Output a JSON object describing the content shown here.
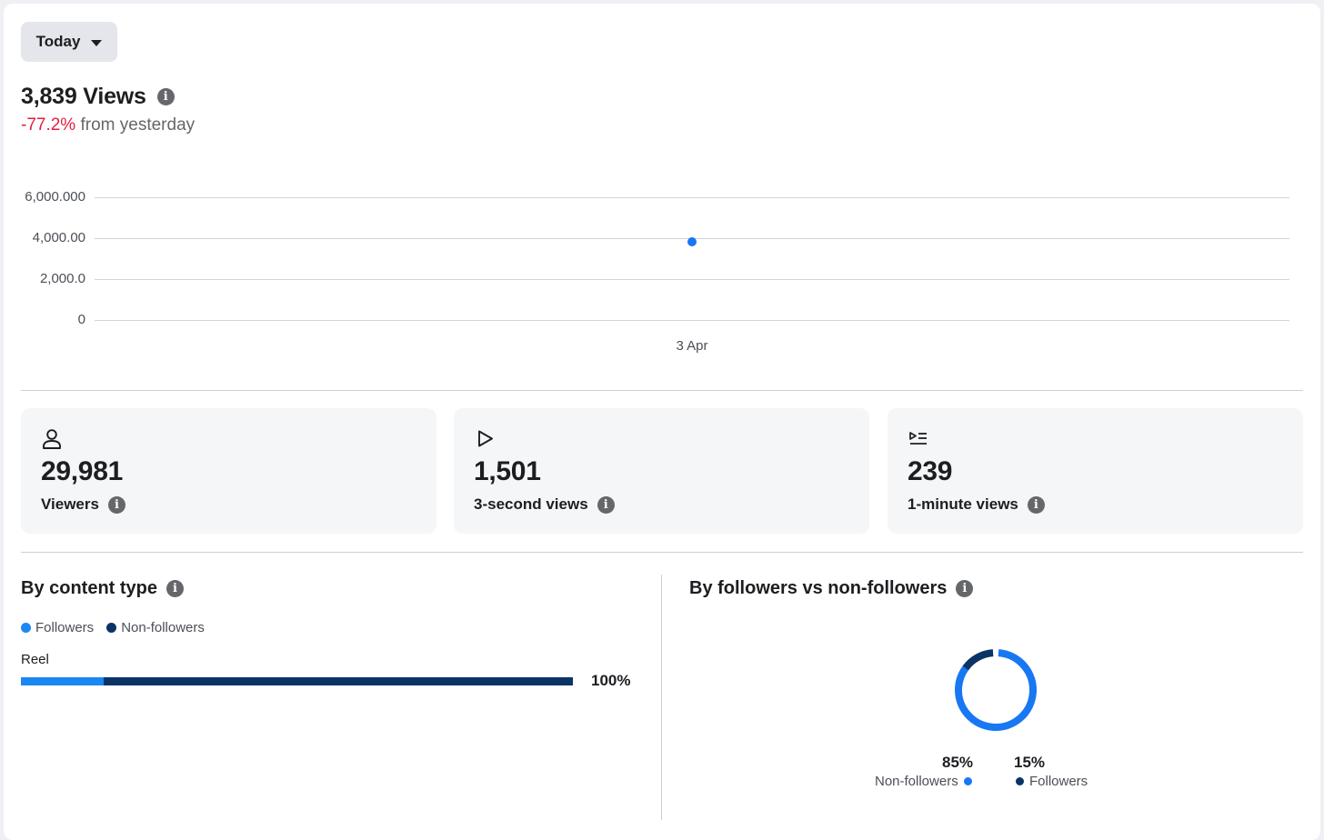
{
  "filter": {
    "label": "Today"
  },
  "summary": {
    "views": "3,839 Views",
    "change_pct": "-77.2%",
    "change_suffix": "from yesterday"
  },
  "chart_data": {
    "type": "scatter",
    "x": [
      "3 Apr"
    ],
    "y": [
      3839
    ],
    "ylim": [
      0,
      6000
    ],
    "yticks": [
      {
        "value": 6000,
        "label": "6,000.000"
      },
      {
        "value": 4000,
        "label": "4,000.00"
      },
      {
        "value": 2000,
        "label": "2,000.0"
      },
      {
        "value": 0,
        "label": "0"
      }
    ],
    "xticks": [
      "3 Apr"
    ],
    "grid": true,
    "color": "#1877f2"
  },
  "metrics": [
    {
      "icon": "person-icon",
      "value": "29,981",
      "label": "Viewers"
    },
    {
      "icon": "play-icon",
      "value": "1,501",
      "label": "3-second views"
    },
    {
      "icon": "play-list-icon",
      "value": "239",
      "label": "1-minute views"
    }
  ],
  "content_type": {
    "title": "By content type",
    "legend": [
      {
        "label": "Followers",
        "color": "#1b87f3"
      },
      {
        "label": "Non-followers",
        "color": "#0a3466"
      }
    ],
    "rows": [
      {
        "label": "Reel",
        "followers_share": 0.15,
        "non_followers_share": 0.85,
        "total_label": "100%"
      }
    ]
  },
  "followers_split": {
    "title": "By followers vs non-followers",
    "segments": [
      {
        "label": "Non-followers",
        "pct_label": "85%",
        "value": 85,
        "color": "#1877f2"
      },
      {
        "label": "Followers",
        "pct_label": "15%",
        "value": 15,
        "color": "#0a3466"
      }
    ]
  }
}
